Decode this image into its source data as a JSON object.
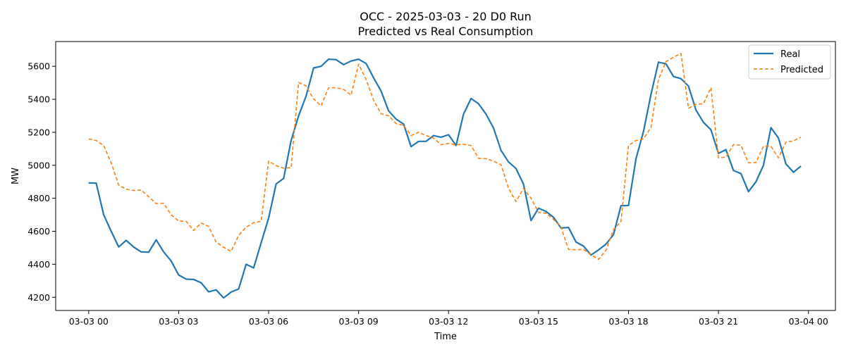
{
  "chart_data": {
    "type": "line",
    "title": "OCC - 2025-03-03 - 20 D0 Run",
    "subtitle": "Predicted vs Real Consumption",
    "xlabel": "Time",
    "ylabel": "MW",
    "x_unit": "hours since 03-03 00:00",
    "x_step_minutes": 15,
    "xlim": [
      -1.1,
      24.9
    ],
    "ylim": [
      4120,
      5750
    ],
    "x_ticks": [
      0,
      3,
      6,
      9,
      12,
      15,
      18,
      21,
      24
    ],
    "x_tick_labels": [
      "03-03 00",
      "03-03 03",
      "03-03 06",
      "03-03 09",
      "03-03 12",
      "03-03 15",
      "03-03 18",
      "03-03 21",
      "03-04 00"
    ],
    "y_ticks": [
      4200,
      4400,
      4600,
      4800,
      5000,
      5200,
      5400,
      5600
    ],
    "y_tick_labels": [
      "4200",
      "4400",
      "4600",
      "4800",
      "5000",
      "5200",
      "5400",
      "5600"
    ],
    "grid": false,
    "legend_position": "top-right",
    "series": [
      {
        "name": "Real",
        "color": "#1f77b4",
        "style": "solid",
        "values": [
          4893,
          4892,
          4700,
          4600,
          4505,
          4545,
          4505,
          4475,
          4473,
          4548,
          4475,
          4420,
          4335,
          4310,
          4308,
          4288,
          4233,
          4245,
          4196,
          4232,
          4250,
          4400,
          4378,
          4530,
          4680,
          4887,
          4920,
          5150,
          5300,
          5420,
          5590,
          5600,
          5643,
          5640,
          5610,
          5632,
          5643,
          5617,
          5530,
          5450,
          5330,
          5280,
          5250,
          5113,
          5145,
          5145,
          5180,
          5170,
          5185,
          5120,
          5310,
          5405,
          5373,
          5310,
          5225,
          5090,
          5020,
          4980,
          4885,
          4665,
          4740,
          4720,
          4685,
          4620,
          4623,
          4535,
          4510,
          4456,
          4487,
          4522,
          4580,
          4755,
          4756,
          5040,
          5205,
          5430,
          5625,
          5615,
          5538,
          5525,
          5480,
          5335,
          5260,
          5215,
          5072,
          5095,
          4968,
          4950,
          4840,
          4900,
          5000,
          5228,
          5165,
          5008,
          4958,
          4995
        ]
      },
      {
        "name": "Predicted",
        "color": "#ff7f0e",
        "style": "dashed",
        "values": [
          5160,
          5150,
          5120,
          5015,
          4880,
          4855,
          4847,
          4850,
          4810,
          4768,
          4770,
          4700,
          4662,
          4660,
          4605,
          4650,
          4630,
          4535,
          4503,
          4478,
          4575,
          4625,
          4652,
          4660,
          5025,
          4998,
          4983,
          4985,
          5502,
          5480,
          5402,
          5360,
          5470,
          5470,
          5460,
          5425,
          5613,
          5520,
          5395,
          5312,
          5300,
          5253,
          5242,
          5180,
          5200,
          5180,
          5165,
          5125,
          5132,
          5125,
          5127,
          5120,
          5042,
          5040,
          5025,
          5003,
          4860,
          4780,
          4860,
          4800,
          4715,
          4710,
          4672,
          4625,
          4490,
          4488,
          4490,
          4458,
          4430,
          4485,
          4610,
          4660,
          5120,
          5150,
          5160,
          5230,
          5520,
          5628,
          5655,
          5678,
          5345,
          5370,
          5373,
          5470,
          5045,
          5050,
          5125,
          5122,
          5015,
          5017,
          5115,
          5115,
          5045,
          5140,
          5148,
          5170
        ]
      }
    ]
  }
}
